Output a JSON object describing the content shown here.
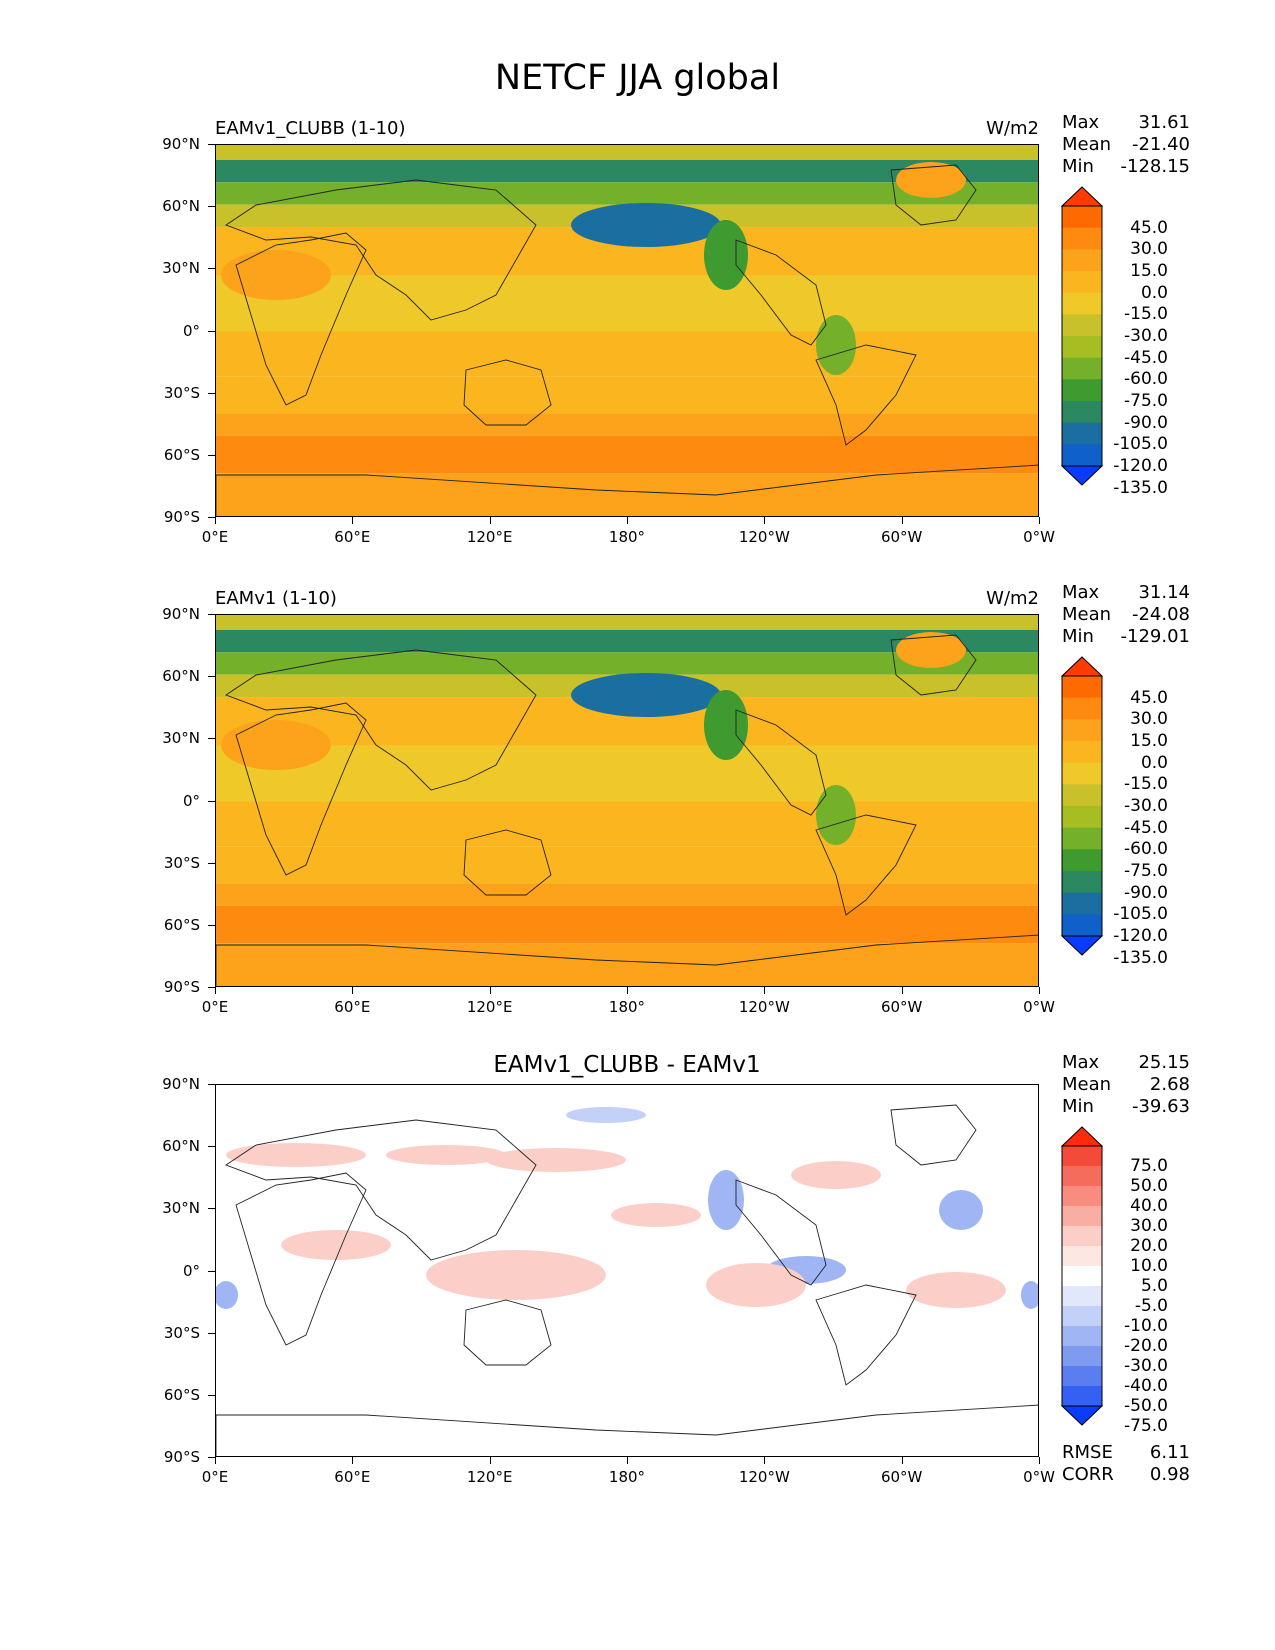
{
  "title": "NETCF JJA global",
  "y_ticks": [
    "90°N",
    "60°N",
    "30°N",
    "0°",
    "30°S",
    "60°S",
    "90°S"
  ],
  "x_ticks": [
    "0°E",
    "60°E",
    "120°E",
    "180°",
    "120°W",
    "60°W",
    "0°W"
  ],
  "labels": {
    "max": "Max",
    "mean": "Mean",
    "min": "Min",
    "rmse": "RMSE",
    "corr": "CORR"
  },
  "panels": [
    {
      "name": "EAMv1_CLUBB (1-10)",
      "units": "W/m2",
      "max": "31.61",
      "mean": "-21.40",
      "min": "-128.15",
      "cbar_labels": [
        "45.0",
        "30.0",
        "15.0",
        "0.0",
        "-15.0",
        "-30.0",
        "-45.0",
        "-60.0",
        "-75.0",
        "-90.0",
        "-105.0",
        "-120.0",
        "-135.0"
      ],
      "cbar_colors": [
        "#ff3b00",
        "#ff6a00",
        "#fe8a10",
        "#fca21b",
        "#fbb61f",
        "#eec929",
        "#c9c12a",
        "#a6be22",
        "#74b02a",
        "#3f9a30",
        "#2c8860",
        "#1a6fa0",
        "#0f60c8",
        "#0a3cff"
      ]
    },
    {
      "name": "EAMv1 (1-10)",
      "units": "W/m2",
      "max": "31.14",
      "mean": "-24.08",
      "min": "-129.01",
      "cbar_labels": [
        "45.0",
        "30.0",
        "15.0",
        "0.0",
        "-15.0",
        "-30.0",
        "-45.0",
        "-60.0",
        "-75.0",
        "-90.0",
        "-105.0",
        "-120.0",
        "-135.0"
      ],
      "cbar_colors": [
        "#ff3b00",
        "#ff6a00",
        "#fe8a10",
        "#fca21b",
        "#fbb61f",
        "#eec929",
        "#c9c12a",
        "#a6be22",
        "#74b02a",
        "#3f9a30",
        "#2c8860",
        "#1a6fa0",
        "#0f60c8",
        "#0a3cff"
      ]
    },
    {
      "name": "EAMv1_CLUBB - EAMv1",
      "units": "",
      "max": "25.15",
      "mean": "2.68",
      "min": "-39.63",
      "rmse": "6.11",
      "corr": "0.98",
      "cbar_labels": [
        "75.0",
        "50.0",
        "40.0",
        "30.0",
        "20.0",
        "10.0",
        "5.0",
        "-5.0",
        "-10.0",
        "-20.0",
        "-30.0",
        "-40.0",
        "-50.0",
        "-75.0"
      ],
      "cbar_colors": [
        "#ff2a0a",
        "#f44a3a",
        "#f56b5c",
        "#f78c7f",
        "#f9aea4",
        "#fbcfc8",
        "#fde7e3",
        "#ffffff",
        "#e2e8fb",
        "#c3d1f8",
        "#a0b6f4",
        "#7e9bf0",
        "#5a7df0",
        "#3560f4",
        "#0a3cff"
      ]
    }
  ],
  "chart_data": [
    {
      "type": "heatmap",
      "title": "EAMv1_CLUBB (1-10)",
      "units": "W/m2",
      "xlabel": "",
      "ylabel": "",
      "x_range": [
        "0°E",
        "0°W"
      ],
      "y_range": [
        "90°S",
        "90°N"
      ],
      "stats": {
        "max": 31.61,
        "mean": -21.4,
        "min": -128.15
      },
      "levels": [
        -135,
        -120,
        -105,
        -90,
        -75,
        -60,
        -45,
        -30,
        -15,
        0,
        15,
        30,
        45
      ]
    },
    {
      "type": "heatmap",
      "title": "EAMv1 (1-10)",
      "units": "W/m2",
      "xlabel": "",
      "ylabel": "",
      "x_range": [
        "0°E",
        "0°W"
      ],
      "y_range": [
        "90°S",
        "90°N"
      ],
      "stats": {
        "max": 31.14,
        "mean": -24.08,
        "min": -129.01
      },
      "levels": [
        -135,
        -120,
        -105,
        -90,
        -75,
        -60,
        -45,
        -30,
        -15,
        0,
        15,
        30,
        45
      ]
    },
    {
      "type": "heatmap",
      "title": "EAMv1_CLUBB - EAMv1",
      "units": "",
      "xlabel": "",
      "ylabel": "",
      "x_range": [
        "0°E",
        "0°W"
      ],
      "y_range": [
        "90°S",
        "90°N"
      ],
      "stats": {
        "max": 25.15,
        "mean": 2.68,
        "min": -39.63,
        "rmse": 6.11,
        "corr": 0.98
      },
      "levels": [
        -75,
        -50,
        -40,
        -30,
        -20,
        -10,
        -5,
        5,
        10,
        20,
        30,
        40,
        50,
        75
      ]
    }
  ]
}
